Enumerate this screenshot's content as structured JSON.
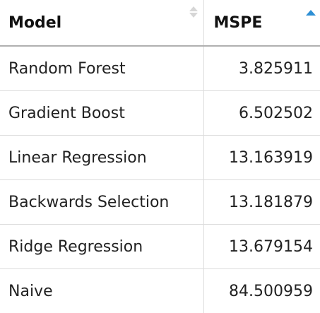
{
  "table": {
    "columns": [
      {
        "label": "Model",
        "sort_state": "unsorted"
      },
      {
        "label": "MSPE",
        "sort_state": "ascending"
      }
    ],
    "rows": [
      {
        "model": "Random Forest",
        "mspe": "3.825911"
      },
      {
        "model": "Gradient Boost",
        "mspe": "6.502502"
      },
      {
        "model": "Linear Regression",
        "mspe": "13.163919"
      },
      {
        "model": "Backwards Selection",
        "mspe": "13.181879"
      },
      {
        "model": "Ridge Regression",
        "mspe": "13.679154"
      },
      {
        "model": "Naive",
        "mspe": "84.500959"
      }
    ]
  },
  "colors": {
    "active_sort_arrow": "#2e8fd4",
    "inactive_sort_arrow": "#d6d6d6",
    "header_rule": "#b0b0b0",
    "row_rule": "#dcdcdc"
  },
  "icons": {
    "model_sort": "sort-both-icon",
    "mspe_sort": "sort-ascending-icon"
  }
}
